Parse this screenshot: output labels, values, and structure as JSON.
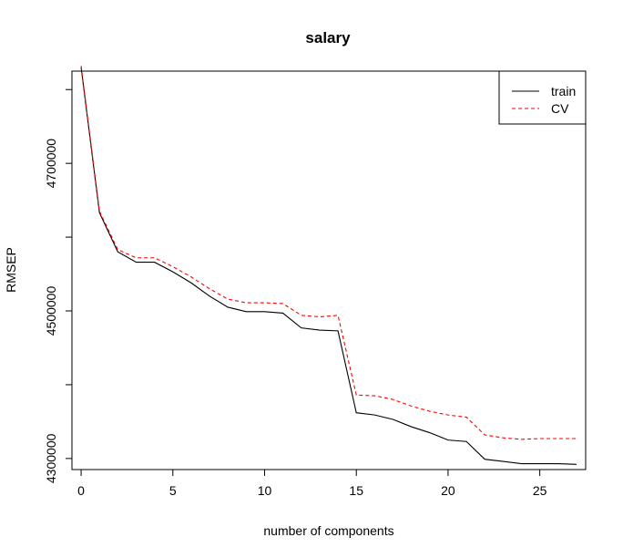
{
  "chart_data": {
    "type": "line",
    "title": "salary",
    "xlabel": "number of components",
    "ylabel": "RMSEP",
    "xlim": [
      -0.5,
      27.5
    ],
    "ylim": [
      4285000,
      4825000
    ],
    "x_ticks": [
      0,
      5,
      10,
      15,
      20,
      25
    ],
    "y_ticks": [
      4300000,
      4400000,
      4500000,
      4600000,
      4700000,
      4800000
    ],
    "y_tick_labels": [
      "4300000",
      "",
      "4500000",
      "",
      "4700000",
      ""
    ],
    "legend_position": "top-right",
    "grid": false,
    "x": [
      0,
      1,
      2,
      3,
      4,
      5,
      6,
      7,
      8,
      9,
      10,
      11,
      12,
      13,
      14,
      15,
      16,
      17,
      18,
      19,
      20,
      21,
      22,
      23,
      24,
      25,
      26,
      27
    ],
    "series": [
      {
        "name": "train",
        "color": "#000000",
        "dash": "solid",
        "values": [
          4830000,
          4633000,
          4580000,
          4566000,
          4566000,
          4553000,
          4538000,
          4520000,
          4505000,
          4499000,
          4499000,
          4497000,
          4477000,
          4474000,
          4473000,
          4362000,
          4359000,
          4353000,
          4343000,
          4335000,
          4325000,
          4323000,
          4299000,
          4296000,
          4293000,
          4293000,
          4293000,
          4292000
        ]
      },
      {
        "name": "CV",
        "color": "#ff0000",
        "dash": "dashed",
        "values": [
          4832000,
          4635000,
          4583000,
          4572000,
          4572000,
          4560000,
          4546000,
          4530000,
          4516000,
          4511000,
          4511000,
          4510000,
          4494000,
          4492000,
          4494000,
          4386000,
          4385000,
          4380000,
          4371000,
          4364000,
          4359000,
          4356000,
          4332000,
          4328000,
          4326000,
          4327000,
          4327000,
          4327000
        ]
      }
    ]
  }
}
